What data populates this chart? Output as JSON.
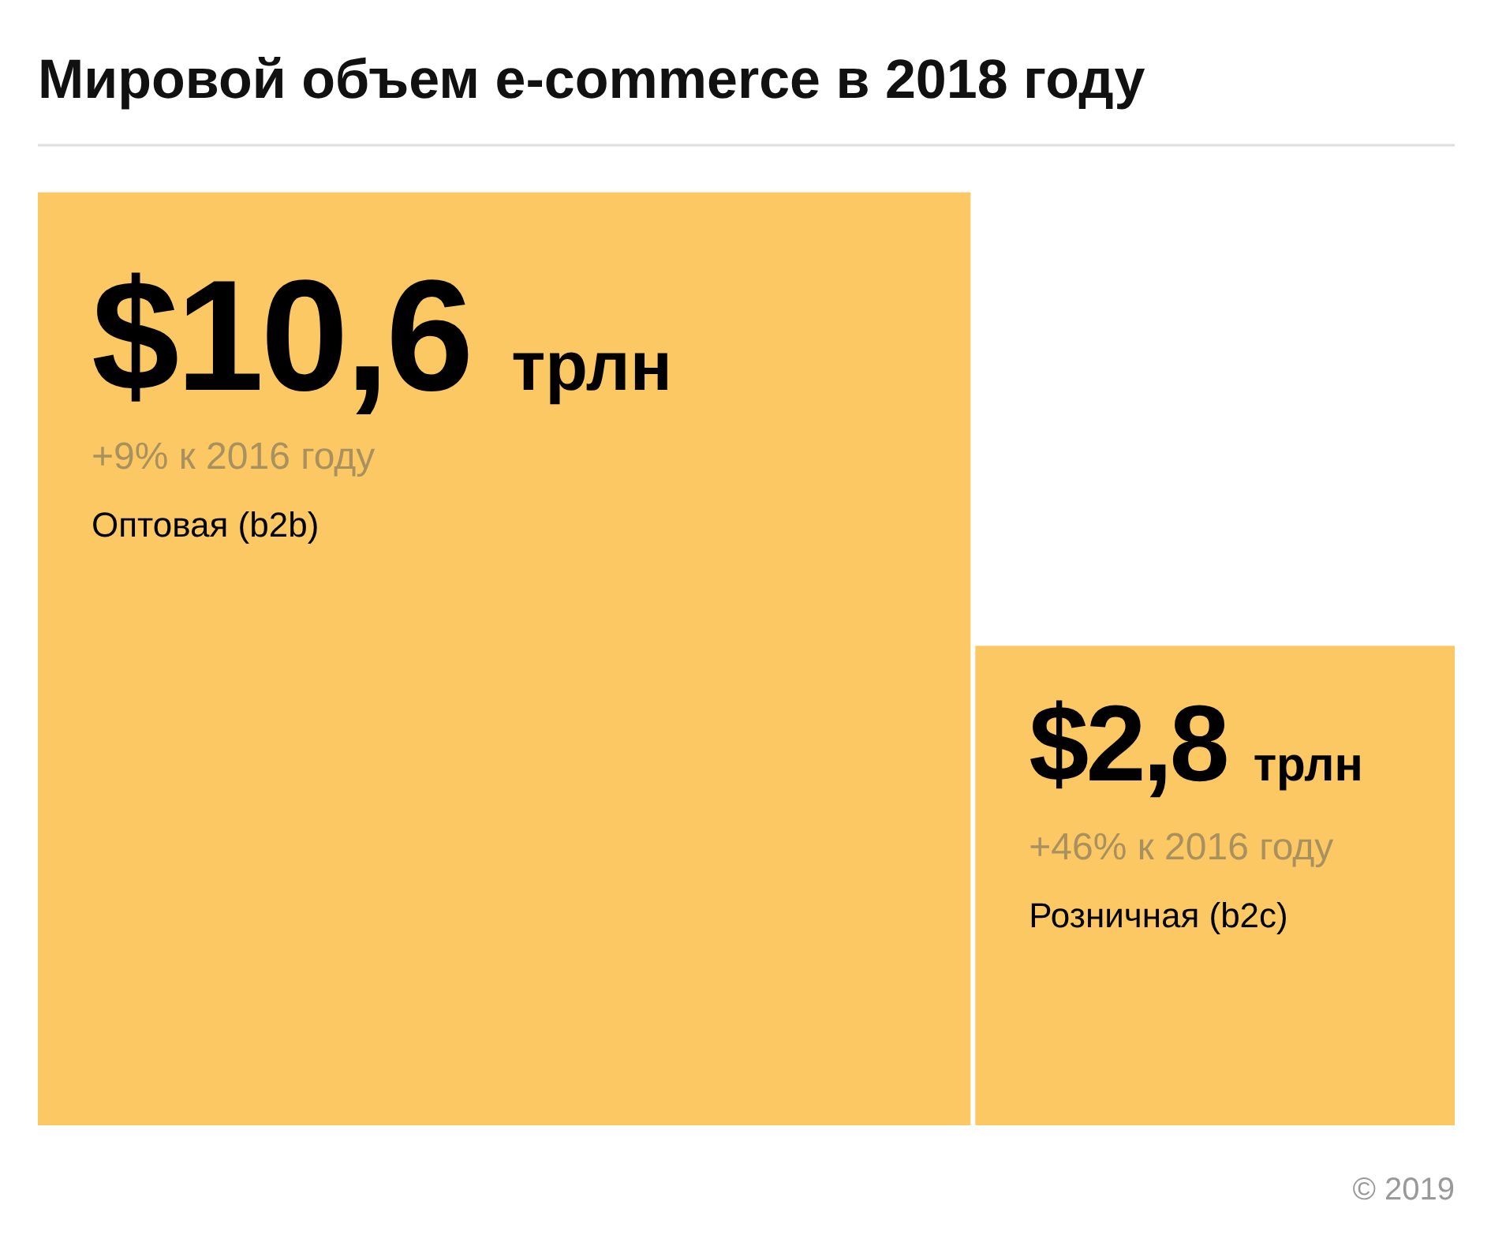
{
  "chart_data": {
    "type": "other",
    "title": "Мировой объем e-commerce в 2018 году",
    "categories": [
      "Оптовая (b2b)",
      "Розничная (b2c)"
    ],
    "values": [
      10.6,
      2.8
    ],
    "value_labels": [
      "$10,6 трлн",
      "$2,8 трлн"
    ],
    "color": "#fcc864",
    "annotations": [
      {
        "text": "+9% к 2016 году",
        "x": "Оптовая (b2b)"
      },
      {
        "text": "+46% к 2016 году",
        "x": "Розничная (b2c)"
      },
      "© 2019"
    ]
  }
}
